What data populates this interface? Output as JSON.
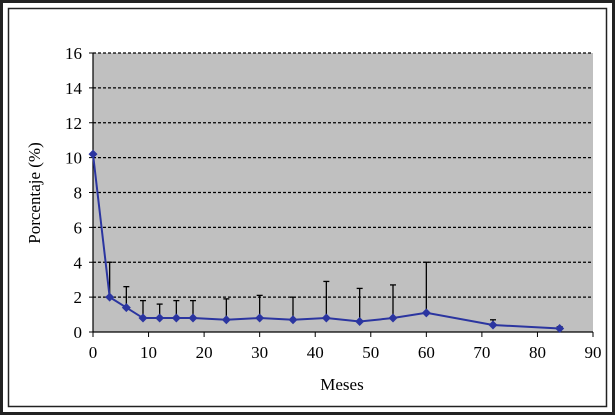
{
  "chart_data": {
    "type": "line",
    "title": "",
    "xlabel": "Meses",
    "ylabel": "Porcentaje (%)",
    "xlim": [
      0,
      90
    ],
    "ylim": [
      0,
      16
    ],
    "xticks": [
      0,
      10,
      20,
      30,
      40,
      50,
      60,
      70,
      80,
      90
    ],
    "yticks": [
      0,
      2,
      4,
      6,
      8,
      10,
      12,
      14,
      16
    ],
    "grid": "horizontal dashed",
    "legend": "none",
    "colors": {
      "plot_background": "#c0c0c0",
      "series": "#2b35a0",
      "error_bars": "#000000",
      "frame": "#222222"
    },
    "series": [
      {
        "x": [
          0,
          3,
          6,
          9,
          12,
          15,
          18,
          24,
          30,
          36,
          42,
          48,
          54,
          60,
          72,
          84
        ],
        "y": [
          10.2,
          2.0,
          1.4,
          0.8,
          0.8,
          0.8,
          0.8,
          0.7,
          0.8,
          0.7,
          0.8,
          0.6,
          0.8,
          1.1,
          0.4,
          0.2
        ],
        "error_upper": [
          null,
          4.0,
          2.6,
          1.8,
          1.6,
          1.8,
          1.8,
          1.9,
          2.1,
          2.0,
          2.9,
          2.5,
          2.7,
          4.0,
          0.7,
          0.3
        ]
      }
    ]
  }
}
